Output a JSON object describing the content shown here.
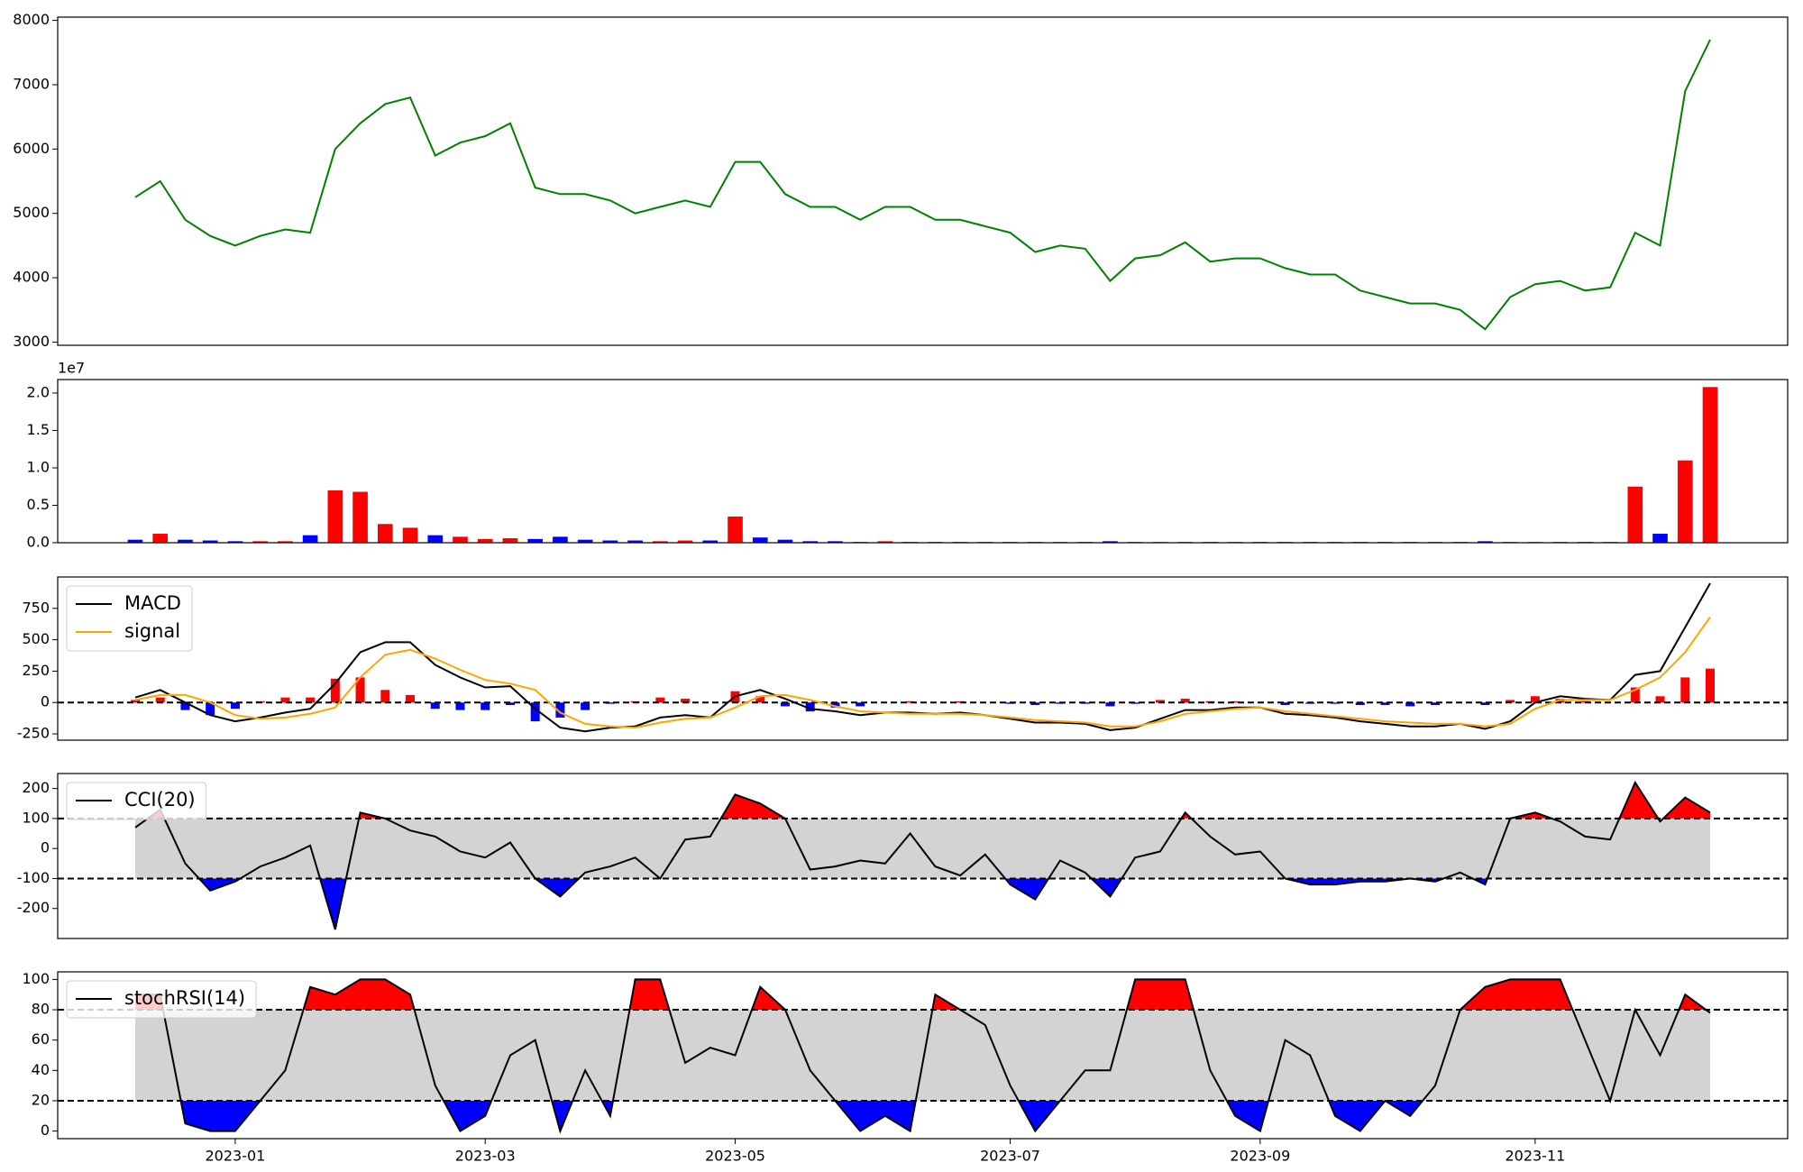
{
  "chart_data": [
    {
      "type": "line",
      "series": [
        {
          "name": "close",
          "color": "#008000",
          "values": [
            5250,
            5500,
            4900,
            4650,
            4500,
            4650,
            4750,
            4700,
            6000,
            6400,
            6700,
            6800,
            5900,
            6100,
            6200,
            6400,
            5400,
            5300,
            5300,
            5200,
            5000,
            5100,
            5200,
            5100,
            5800,
            5800,
            5300,
            5100,
            5100,
            4900,
            5100,
            5100,
            4900,
            4900,
            4800,
            4700,
            4400,
            4500,
            4450,
            3950,
            4300,
            4350,
            4550,
            4250,
            4300,
            4300,
            4150,
            4050,
            4050,
            3800,
            3700,
            3600,
            3600,
            3500,
            3200,
            3700,
            3900,
            3950,
            3800,
            3850,
            4700,
            4500,
            6900,
            7700
          ]
        }
      ],
      "ylim": [
        2950,
        8050
      ],
      "yticks": [
        3000,
        4000,
        5000,
        6000,
        7000,
        8000
      ]
    },
    {
      "type": "bar",
      "offset_label": "1e7",
      "values": [
        0.04,
        0.12,
        0.04,
        0.03,
        0.02,
        0.02,
        0.02,
        0.1,
        0.7,
        0.68,
        0.25,
        0.2,
        0.1,
        0.08,
        0.05,
        0.06,
        0.05,
        0.08,
        0.04,
        0.03,
        0.03,
        0.02,
        0.03,
        0.03,
        0.35,
        0.07,
        0.04,
        0.02,
        0.02,
        0.01,
        0.02,
        0.01,
        0.01,
        0.01,
        0.01,
        0.01,
        0.01,
        0.01,
        0.01,
        0.02,
        0.01,
        0.01,
        0.01,
        0.01,
        0.01,
        0.01,
        0.01,
        0.01,
        0.01,
        0.01,
        0.01,
        0.01,
        0.01,
        0.01,
        0.02,
        0.01,
        0.01,
        0.01,
        0.01,
        0.01,
        0.75,
        0.12,
        1.1,
        2.08
      ],
      "colors": [
        "#0000ff",
        "#ff0000",
        "#0000ff",
        "#0000ff",
        "#0000ff",
        "#ff0000",
        "#ff0000",
        "#0000ff",
        "#ff0000",
        "#ff0000",
        "#ff0000",
        "#ff0000",
        "#0000ff",
        "#ff0000",
        "#ff0000",
        "#ff0000",
        "#0000ff",
        "#0000ff",
        "#0000ff",
        "#0000ff",
        "#0000ff",
        "#ff0000",
        "#ff0000",
        "#0000ff",
        "#ff0000",
        "#0000ff",
        "#0000ff",
        "#0000ff",
        "#0000ff",
        "#0000ff",
        "#ff0000",
        "#0000ff",
        "#0000ff",
        "#0000ff",
        "#0000ff",
        "#0000ff",
        "#0000ff",
        "#ff0000",
        "#0000ff",
        "#0000ff",
        "#ff0000",
        "#ff0000",
        "#ff0000",
        "#0000ff",
        "#ff0000",
        "#0000ff",
        "#0000ff",
        "#0000ff",
        "#0000ff",
        "#0000ff",
        "#0000ff",
        "#0000ff",
        "#0000ff",
        "#0000ff",
        "#0000ff",
        "#ff0000",
        "#ff0000",
        "#ff0000",
        "#0000ff",
        "#ff0000",
        "#ff0000",
        "#0000ff",
        "#ff0000",
        "#ff0000"
      ],
      "ylim": [
        0,
        2.18
      ],
      "yticks": [
        {
          "value": 0,
          "label": "0.0"
        },
        {
          "value": 0.5,
          "label": "0.5"
        },
        {
          "value": 1,
          "label": "1.0"
        },
        {
          "value": 1.5,
          "label": "1.5"
        },
        {
          "value": 2,
          "label": "2.0"
        }
      ]
    },
    {
      "type": "macd",
      "legend": "upper left",
      "hline": 0,
      "series": [
        {
          "name": "MACD",
          "color": "#000000",
          "values": [
            40,
            100,
            0,
            -100,
            -150,
            -120,
            -80,
            -50,
            150,
            400,
            480,
            480,
            300,
            200,
            120,
            130,
            -50,
            -200,
            -230,
            -200,
            -190,
            -120,
            -100,
            -120,
            50,
            100,
            30,
            -50,
            -70,
            -100,
            -80,
            -80,
            -90,
            -80,
            -100,
            -130,
            -160,
            -160,
            -170,
            -220,
            -200,
            -130,
            -60,
            -60,
            -40,
            -40,
            -90,
            -100,
            -120,
            -150,
            -170,
            -190,
            -190,
            -170,
            -210,
            -150,
            0,
            50,
            30,
            20,
            220,
            250,
            600,
            950
          ]
        },
        {
          "name": "signal",
          "color": "#ffa500",
          "values": [
            20,
            60,
            60,
            0,
            -100,
            -130,
            -120,
            -90,
            -40,
            200,
            380,
            420,
            350,
            260,
            180,
            150,
            100,
            -80,
            -170,
            -190,
            -200,
            -160,
            -130,
            -120,
            -40,
            50,
            60,
            20,
            -30,
            -70,
            -80,
            -90,
            -90,
            -90,
            -100,
            -120,
            -140,
            -150,
            -160,
            -190,
            -190,
            -150,
            -90,
            -70,
            -50,
            -40,
            -70,
            -90,
            -110,
            -130,
            -150,
            -160,
            -170,
            -170,
            -190,
            -170,
            -50,
            20,
            20,
            20,
            100,
            200,
            400,
            680
          ]
        }
      ],
      "histogram": {
        "values": [
          20,
          40,
          -60,
          -100,
          -50,
          10,
          40,
          40,
          190,
          200,
          100,
          60,
          -50,
          -60,
          -60,
          -20,
          -150,
          -120,
          -60,
          -10,
          10,
          40,
          30,
          0,
          90,
          50,
          -30,
          -70,
          -40,
          -30,
          0,
          10,
          0,
          10,
          0,
          -10,
          -20,
          -10,
          -10,
          -30,
          -10,
          20,
          30,
          10,
          10,
          0,
          -20,
          -10,
          -10,
          -20,
          -20,
          -30,
          -20,
          0,
          -20,
          20,
          50,
          30,
          10,
          0,
          120,
          50,
          200,
          270
        ],
        "up_color": "#ff0000",
        "down_color": "#0000ff"
      },
      "ylim": [
        -300,
        1000
      ],
      "yticks": [
        -250,
        0,
        250,
        500,
        750
      ]
    },
    {
      "type": "oscillator",
      "legend": "upper left",
      "band": [
        -100,
        100
      ],
      "band_color": "#d3d3d3",
      "above_color": "#ff0000",
      "below_color": "#0000ff",
      "series": [
        {
          "name": "CCI(20)",
          "color": "#000000",
          "values": [
            70,
            130,
            -50,
            -140,
            -110,
            -60,
            -30,
            10,
            -270,
            120,
            100,
            60,
            40,
            -10,
            -30,
            20,
            -100,
            -160,
            -80,
            -60,
            -30,
            -100,
            30,
            40,
            180,
            150,
            100,
            -70,
            -60,
            -40,
            -50,
            50,
            -60,
            -90,
            -20,
            -120,
            -170,
            -40,
            -80,
            -160,
            -30,
            -10,
            120,
            40,
            -20,
            -10,
            -100,
            -120,
            -120,
            -110,
            -110,
            -100,
            -110,
            -80,
            -120,
            100,
            120,
            90,
            40,
            30,
            220,
            90,
            170,
            120
          ]
        }
      ],
      "ylim": [
        -300,
        250
      ],
      "yticks": [
        -200,
        -100,
        0,
        100,
        200
      ]
    },
    {
      "type": "oscillator",
      "legend": "upper left",
      "band": [
        20,
        80
      ],
      "band_color": "#d3d3d3",
      "above_color": "#ff0000",
      "below_color": "#0000ff",
      "series": [
        {
          "name": "stochRSI(14)",
          "color": "#000000",
          "values": [
            90,
            90,
            5,
            0,
            0,
            20,
            40,
            95,
            90,
            100,
            100,
            90,
            30,
            0,
            10,
            50,
            60,
            0,
            40,
            10,
            100,
            100,
            45,
            55,
            50,
            95,
            80,
            40,
            20,
            0,
            10,
            0,
            90,
            80,
            70,
            30,
            0,
            20,
            40,
            40,
            100,
            100,
            100,
            40,
            10,
            0,
            60,
            50,
            10,
            0,
            20,
            10,
            30,
            80,
            95,
            100,
            100,
            100,
            60,
            20,
            80,
            50,
            90,
            78
          ]
        }
      ],
      "categories": [
        null,
        null,
        null,
        null,
        "2023-01",
        null,
        null,
        null,
        null,
        null,
        null,
        null,
        null,
        null,
        "2023-03",
        null,
        null,
        null,
        null,
        null,
        null,
        null,
        null,
        null,
        "2023-05",
        null,
        null,
        null,
        null,
        null,
        null,
        null,
        null,
        null,
        null,
        "2023-07",
        null,
        null,
        null,
        null,
        null,
        null,
        null,
        null,
        null,
        "2023-09",
        null,
        null,
        null,
        null,
        null,
        null,
        null,
        null,
        null,
        null,
        "2023-11",
        null,
        null,
        null,
        null,
        null,
        null,
        null
      ],
      "ylim": [
        -5,
        105
      ],
      "yticks": [
        0,
        20,
        40,
        60,
        80,
        100
      ]
    }
  ]
}
